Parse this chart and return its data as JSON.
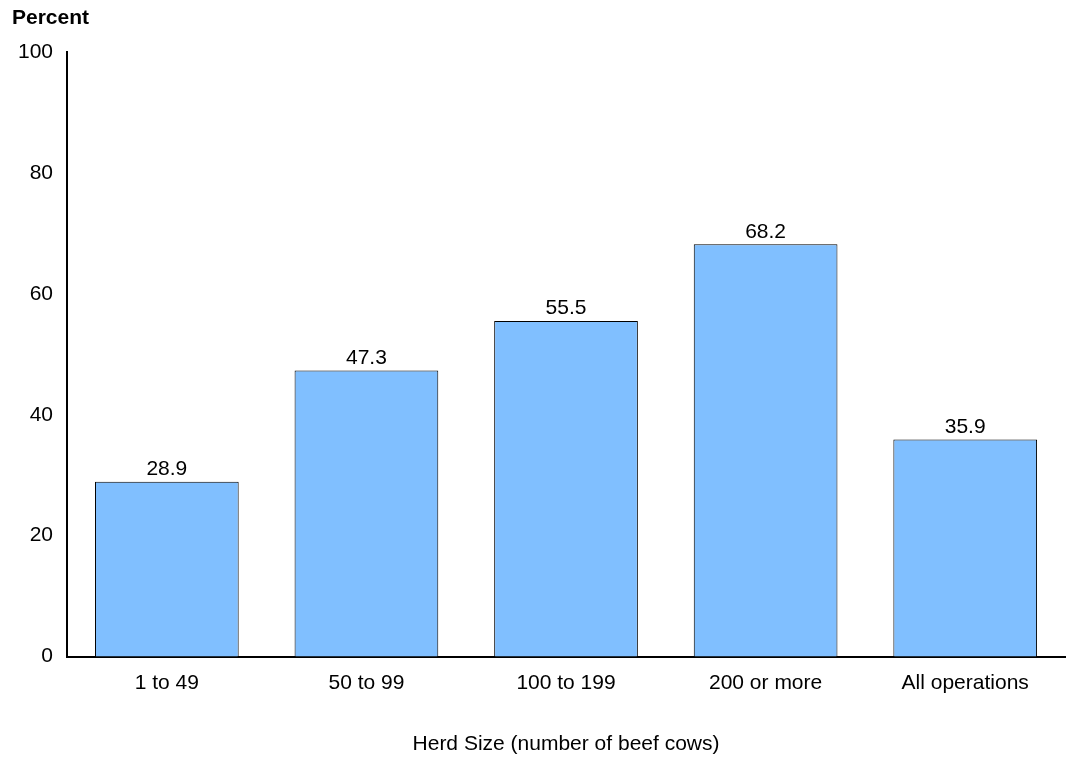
{
  "chart_data": {
    "type": "bar",
    "ylabel": "Percent",
    "xlabel": "Herd Size (number of beef cows)",
    "categories": [
      "1 to 49",
      "50 to 99",
      "100 to 199",
      "200 or more",
      "All operations"
    ],
    "values": [
      28.9,
      47.3,
      55.5,
      68.2,
      35.9
    ],
    "color": "#80bfff",
    "ylim": [
      0,
      100
    ],
    "yticks": [
      0,
      20,
      40,
      60,
      80,
      100
    ],
    "grid": false,
    "legend": false,
    "data_labels": true
  }
}
